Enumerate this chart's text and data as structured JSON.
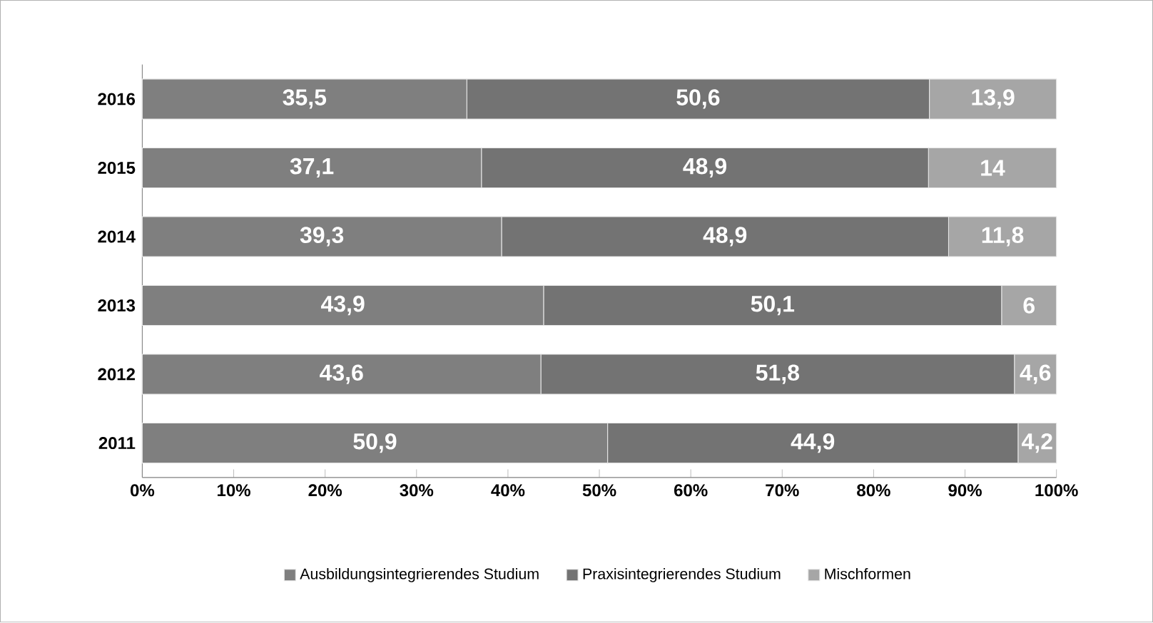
{
  "chart_data": {
    "type": "bar",
    "orientation": "horizontal",
    "stacked": true,
    "categories": [
      "2016",
      "2015",
      "2014",
      "2013",
      "2012",
      "2011"
    ],
    "series": [
      {
        "name": "Ausbildungsintegrierendes Studium",
        "color": "#7f7f7f",
        "values": [
          35.5,
          37.1,
          39.3,
          43.9,
          43.6,
          50.9
        ],
        "value_labels": [
          "35,5",
          "37,1",
          "39,3",
          "43,9",
          "43,6",
          "50,9"
        ]
      },
      {
        "name": "Praxisintegrierendes Studium",
        "color": "#737373",
        "values": [
          50.6,
          48.9,
          48.9,
          50.1,
          51.8,
          44.9
        ],
        "value_labels": [
          "50,6",
          "48,9",
          "48,9",
          "50,1",
          "51,8",
          "44,9"
        ]
      },
      {
        "name": "Mischformen",
        "color": "#a6a6a6",
        "values": [
          13.9,
          14,
          11.8,
          6,
          4.6,
          4.2
        ],
        "value_labels": [
          "13,9",
          "14",
          "11,8",
          "6",
          "4,6",
          "4,2"
        ]
      }
    ],
    "xlim": [
      0,
      100
    ],
    "xticks": [
      {
        "value": 0,
        "label": "0%"
      },
      {
        "value": 10,
        "label": "10%"
      },
      {
        "value": 20,
        "label": "20%"
      },
      {
        "value": 30,
        "label": "30%"
      },
      {
        "value": 40,
        "label": "40%"
      },
      {
        "value": 50,
        "label": "50%"
      },
      {
        "value": 60,
        "label": "60%"
      },
      {
        "value": 70,
        "label": "70%"
      },
      {
        "value": 80,
        "label": "80%"
      },
      {
        "value": 90,
        "label": "90%"
      },
      {
        "value": 100,
        "label": "100%"
      }
    ],
    "legend": "bottom"
  }
}
